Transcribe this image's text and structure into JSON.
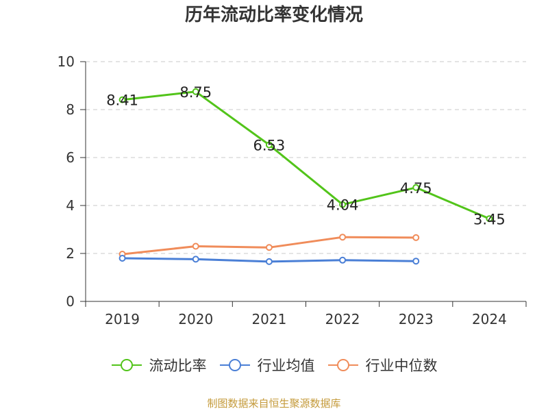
{
  "chart_data": {
    "type": "line",
    "title": "历年流动比率变化情况",
    "categories": [
      "2019",
      "2020",
      "2021",
      "2022",
      "2023",
      "2024"
    ],
    "ylim": [
      0,
      10
    ],
    "yticks": [
      0,
      2,
      4,
      6,
      8,
      10
    ],
    "grid": true,
    "legend_position": "bottom",
    "series": [
      {
        "name": "流动比率",
        "color": "#52c41a",
        "values": [
          8.41,
          8.75,
          6.53,
          4.04,
          4.75,
          3.45
        ],
        "labels": [
          "8.41",
          "8.75",
          "6.53",
          "4.04",
          "4.75",
          "3.45"
        ]
      },
      {
        "name": "行业均值",
        "color": "#4a7fd6",
        "values": [
          1.8,
          1.76,
          1.66,
          1.72,
          1.68,
          null
        ]
      },
      {
        "name": "行业中位数",
        "color": "#f08c5a",
        "values": [
          1.97,
          2.3,
          2.25,
          2.68,
          2.66,
          null
        ]
      }
    ]
  },
  "footer": {
    "source": "制图数据来自恒生聚源数据库"
  }
}
